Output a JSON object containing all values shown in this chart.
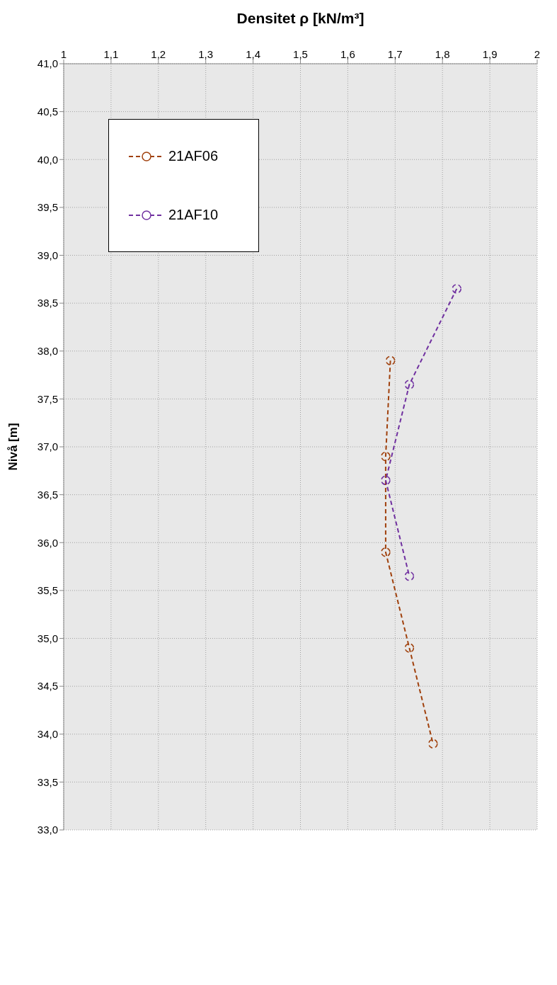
{
  "chart_data": {
    "type": "line",
    "xlabel": "Densitet ρ [kN/m³]",
    "ylabel": "Nivå [m]",
    "xlim": [
      1,
      2
    ],
    "xticks": [
      1,
      {
        "value": 1.1,
        "label": "1,1"
      },
      {
        "value": 1.2,
        "label": "1,2"
      },
      {
        "value": 1.3,
        "label": "1,3"
      },
      {
        "value": 1.4,
        "label": "1,4"
      },
      {
        "value": 1.5,
        "label": "1,5"
      },
      {
        "value": 1.6,
        "label": "1,6"
      },
      {
        "value": 1.7,
        "label": "1,7"
      },
      {
        "value": 1.8,
        "label": "1,8"
      },
      {
        "value": 1.9,
        "label": "1,9"
      },
      2
    ],
    "ylim": [
      33,
      41
    ],
    "yticks": [
      {
        "value": 33,
        "label": "33,0"
      },
      {
        "value": 33.5,
        "label": "33,5"
      },
      {
        "value": 34,
        "label": "34,0"
      },
      {
        "value": 34.5,
        "label": "34,5"
      },
      {
        "value": 35,
        "label": "35,0"
      },
      {
        "value": 35.5,
        "label": "35,5"
      },
      {
        "value": 36,
        "label": "36,0"
      },
      {
        "value": 36.5,
        "label": "36,5"
      },
      {
        "value": 37,
        "label": "37,0"
      },
      {
        "value": 37.5,
        "label": "37,5"
      },
      {
        "value": 38,
        "label": "38,0"
      },
      {
        "value": 38.5,
        "label": "38,5"
      },
      {
        "value": 39,
        "label": "39,0"
      },
      {
        "value": 39.5,
        "label": "39,5"
      },
      {
        "value": 40,
        "label": "40,0"
      },
      {
        "value": 40.5,
        "label": "40,5"
      },
      {
        "value": 41,
        "label": "41,0"
      }
    ],
    "series": [
      {
        "name": "21AF06",
        "color": "#a0410d",
        "x": [
          1.69,
          1.68,
          1.68,
          1.73,
          1.78
        ],
        "values": [
          37.9,
          36.9,
          35.9,
          34.9,
          33.9
        ]
      },
      {
        "name": "21AF10",
        "color": "#7030a0",
        "x": [
          1.83,
          1.73,
          1.68,
          1.73
        ],
        "values": [
          38.65,
          37.65,
          36.65,
          35.65
        ]
      }
    ],
    "grid": true,
    "legend": "top left",
    "marker": "circle",
    "line_style": "dashed"
  }
}
